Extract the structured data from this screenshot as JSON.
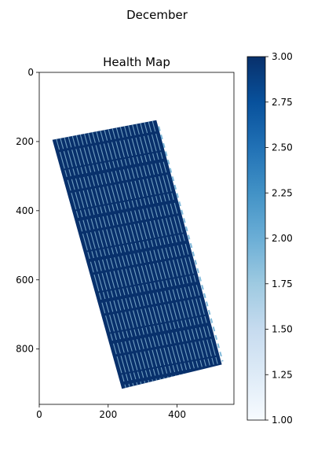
{
  "figure_title": "December",
  "chart_data": {
    "type": "heatmap",
    "title": "Health Map",
    "xlim": [
      0,
      565
    ],
    "ylim": [
      960,
      0
    ],
    "x_ticks": [
      0,
      200,
      400
    ],
    "y_ticks": [
      0,
      200,
      400,
      600,
      800
    ],
    "colorbar": {
      "colormap": "Blues",
      "range": [
        1.0,
        3.0
      ],
      "ticks": [
        "1.00",
        "1.25",
        "1.50",
        "1.75",
        "2.00",
        "2.25",
        "2.50",
        "2.75",
        "3.00"
      ],
      "low_color": "#f7fbff",
      "high_color": "#08306b"
    },
    "field": {
      "corners": [
        [
          38,
          195
        ],
        [
          340,
          138
        ],
        [
          530,
          845
        ],
        [
          240,
          915
        ]
      ],
      "value": 3.0,
      "stripe_value": 1.8,
      "stripe_count": 26
    }
  }
}
